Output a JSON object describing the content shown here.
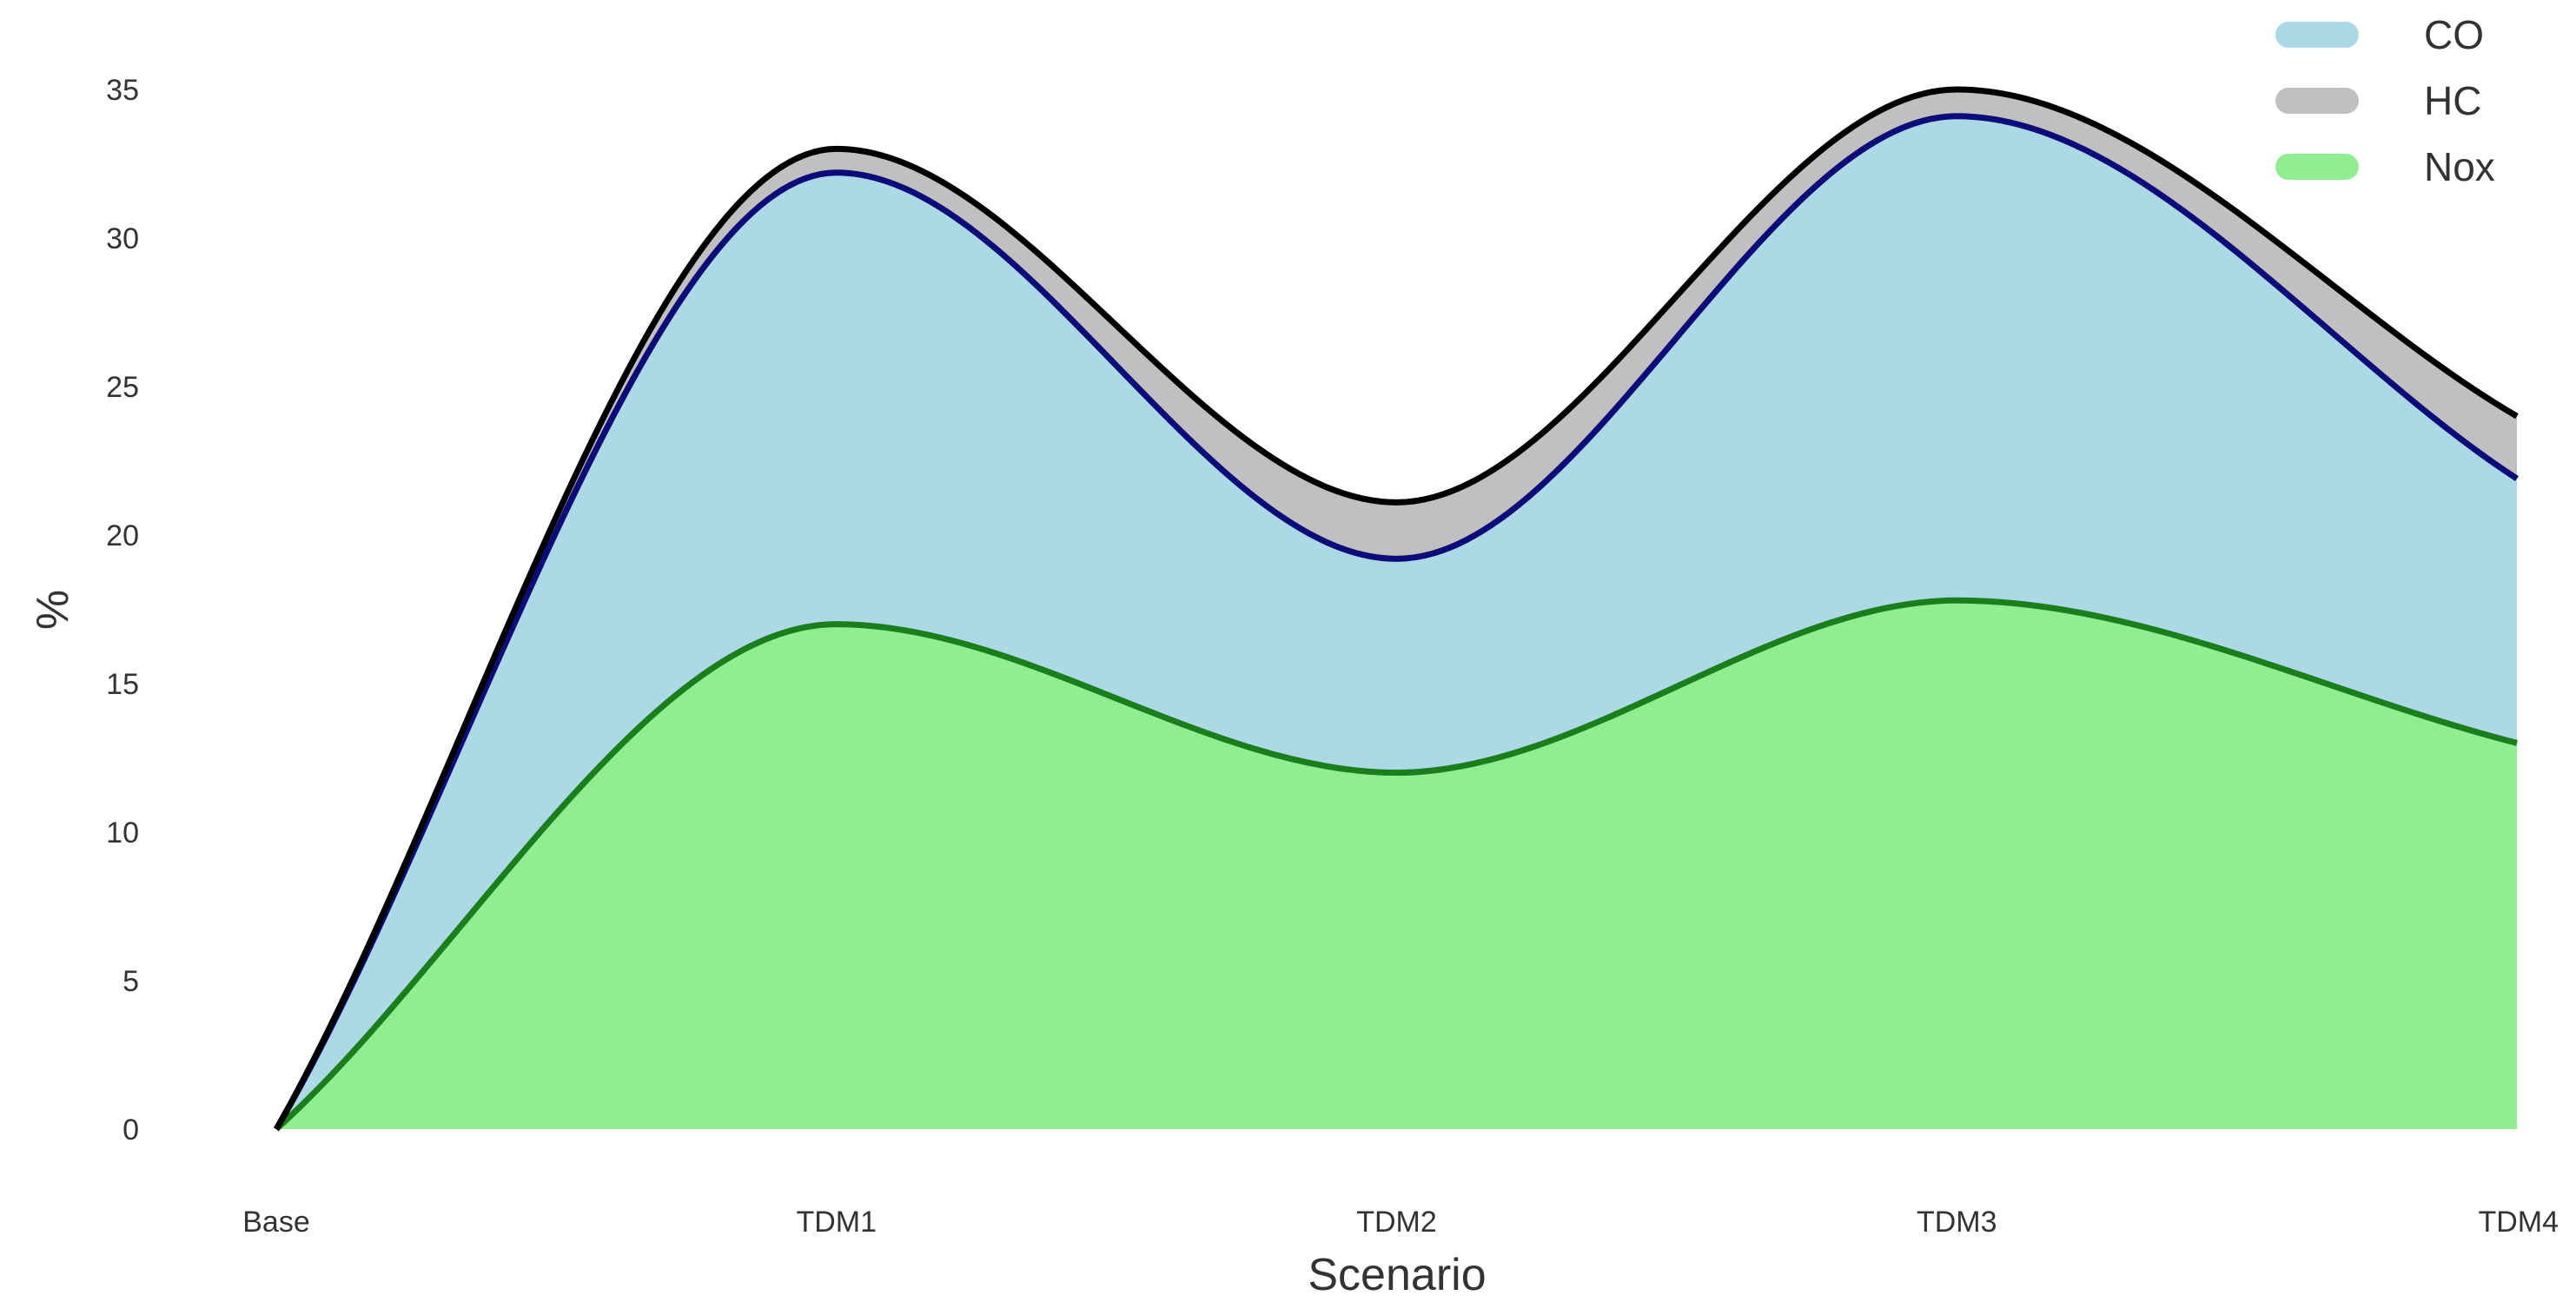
{
  "chart_data": {
    "type": "area",
    "stacked": true,
    "smooth": true,
    "categories": [
      "Base",
      "TDM1",
      "TDM2",
      "TDM3",
      "TDM4"
    ],
    "series": [
      {
        "name": "Nox",
        "values": [
          0,
          17.0,
          12.0,
          17.8,
          13.0
        ],
        "fill": "#90ee90",
        "line": "#1a7f1a"
      },
      {
        "name": "CO",
        "values": [
          0,
          15.2,
          7.2,
          16.3,
          8.9
        ],
        "fill": "#add8e6",
        "line": "#0b0b7a"
      },
      {
        "name": "HC",
        "values": [
          0,
          0.8,
          1.9,
          0.9,
          2.1
        ],
        "fill": "#c0c0c0",
        "line": "#000000"
      }
    ],
    "legend_order": [
      "CO",
      "HC",
      "Nox"
    ],
    "legend_position": "top-right",
    "xlabel": "Scenario",
    "ylabel": "%",
    "ylim": [
      0,
      35
    ],
    "yticks": [
      0,
      5,
      10,
      15,
      20,
      25,
      30,
      35
    ],
    "grid": false
  }
}
